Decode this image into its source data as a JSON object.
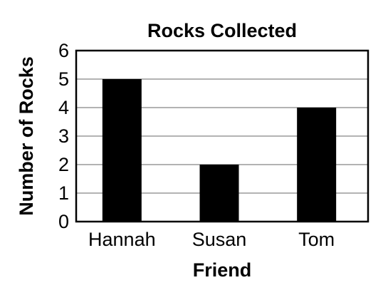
{
  "chart_data": {
    "type": "bar",
    "title": "Rocks Collected",
    "xlabel": "Friend",
    "ylabel": "Number of Rocks",
    "categories": [
      "Hannah",
      "Susan",
      "Tom"
    ],
    "values": [
      5,
      2,
      4
    ],
    "ylim": [
      0,
      6
    ],
    "yticks": [
      "0",
      "1",
      "2",
      "3",
      "4",
      "5",
      "6"
    ],
    "grid": true,
    "colors": {
      "bar": "#000000",
      "grid": "#b3b3b3",
      "frame": "#000000",
      "text": "#000000"
    }
  }
}
